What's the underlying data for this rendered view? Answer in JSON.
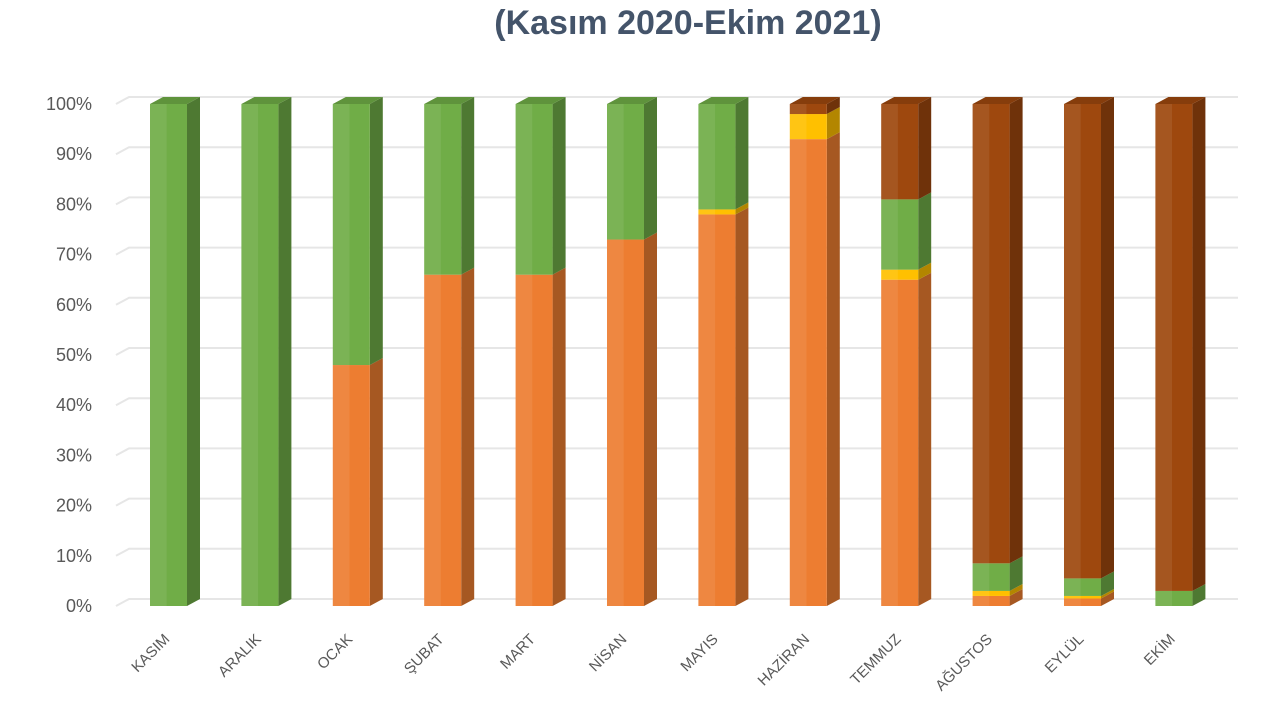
{
  "title": "(Kasım 2020-Ekim 2021)",
  "colors": {
    "orange": "#ed7d31",
    "yellow": "#ffc000",
    "green": "#70ad47",
    "brown": "#9e480e",
    "grid": "#e6e6e6",
    "axis_text": "#595959"
  },
  "chart_data": {
    "type": "bar",
    "stacked": true,
    "percent": true,
    "three_d": true,
    "title": "(Kasım 2020-Ekim 2021)",
    "ylim": [
      0,
      100
    ],
    "y_ticks": [
      "0%",
      "10%",
      "20%",
      "30%",
      "40%",
      "50%",
      "60%",
      "70%",
      "80%",
      "90%",
      "100%"
    ],
    "grid": true,
    "legend": "none",
    "categories": [
      "KASIM",
      "ARALIK",
      "OCAK",
      "ŞUBAT",
      "MART",
      "NİSAN",
      "MAYIS",
      "HAZİRAN",
      "TEMMUZ",
      "AĞUSTOS",
      "EYLÜL",
      "EKİM"
    ],
    "series": [
      {
        "color": "orange",
        "values": [
          0,
          0,
          48,
          66,
          66,
          73,
          78,
          93,
          65,
          2,
          1.5,
          0
        ]
      },
      {
        "color": "yellow",
        "values": [
          0,
          0,
          0,
          0,
          0,
          0,
          1,
          5,
          2,
          1,
          0.5,
          0
        ]
      },
      {
        "color": "green",
        "values": [
          100,
          100,
          52,
          34,
          34,
          27,
          21,
          0,
          14,
          5.5,
          3.5,
          3
        ]
      },
      {
        "color": "brown",
        "values": [
          0,
          0,
          0,
          0,
          0,
          0,
          0,
          2,
          19,
          91.5,
          94.5,
          97
        ]
      }
    ]
  }
}
